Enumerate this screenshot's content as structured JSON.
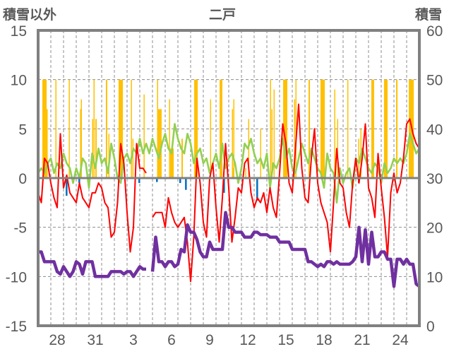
{
  "chart_data": {
    "type": "line",
    "title": "二戸",
    "left_axis_label": "積雪以外",
    "right_axis_label": "積雪",
    "ylim_left": [
      -15,
      15
    ],
    "ylim_right": [
      0,
      60
    ],
    "left_ticks": [
      "15",
      "10",
      "5",
      "0",
      "-5",
      "-10",
      "-15"
    ],
    "left_tick_values": [
      15,
      10,
      5,
      0,
      -5,
      -10,
      -15
    ],
    "right_ticks": [
      "60",
      "50",
      "40",
      "30",
      "20",
      "10",
      "0"
    ],
    "right_tick_values": [
      60,
      50,
      40,
      30,
      20,
      10,
      0
    ],
    "x_range_days": [
      0,
      30
    ],
    "x_ticks": [
      {
        "day": 1.5,
        "label": "28"
      },
      {
        "day": 4.5,
        "label": "31"
      },
      {
        "day": 7.5,
        "label": "3"
      },
      {
        "day": 10.5,
        "label": "6"
      },
      {
        "day": 13.5,
        "label": "9"
      },
      {
        "day": 16.5,
        "label": "12"
      },
      {
        "day": 19.5,
        "label": "15"
      },
      {
        "day": 22.5,
        "label": "18"
      },
      {
        "day": 25.5,
        "label": "21"
      },
      {
        "day": 28.5,
        "label": "24"
      }
    ],
    "grid": {
      "horizontal_dashed": true,
      "vertical_dashed_daily": true
    },
    "series_step_days": 0.25,
    "series": [
      {
        "id": "red-line",
        "axis": "left",
        "color": "#FF0000",
        "values": [
          -1.5,
          -2.5,
          2,
          1.5,
          -0.5,
          -2,
          -3,
          4.5,
          -1,
          0.3,
          -1.5,
          -2,
          -2.5,
          -0.5,
          -2,
          -2.5,
          -3,
          -1.5,
          -1.5,
          -0.5,
          -1,
          -2.5,
          -3,
          -6,
          -5.5,
          -2.5,
          3.5,
          1.5,
          -3.5,
          -7.5,
          -5,
          3.5,
          1,
          1,
          0.5,
          null,
          -4,
          -3.5,
          -3.5,
          -3.5,
          -5,
          -2,
          -3.5,
          -4.5,
          -5,
          -4.5,
          -4,
          -6.5,
          -10.5,
          -6,
          2,
          -0.5,
          -4.5,
          -6,
          0,
          1.5,
          -3,
          -6.5,
          -2,
          3.5,
          -1,
          -6.5,
          -4,
          -1,
          -1.5,
          1.5,
          2,
          -1.5,
          -3,
          -2,
          -2.5,
          -1.5,
          -3.5,
          -1,
          -3,
          -4,
          0.5,
          5.5,
          3.5,
          -0.5,
          -1.5,
          3,
          7.5,
          1,
          -2,
          -2.5,
          2,
          5,
          -0.5,
          -2.5,
          -3.5,
          -4.5,
          -7.5,
          -2.5,
          3,
          -0.5,
          -1,
          -3.5,
          -5,
          -0.5,
          2,
          -0.5,
          2,
          5.5,
          -1,
          -2,
          -4,
          2.5,
          -1,
          -4,
          -8,
          -1.5,
          0.5,
          -1.5,
          -0.5,
          2,
          5.5,
          6,
          4.5,
          3.5,
          3
        ]
      },
      {
        "id": "green-line",
        "axis": "left",
        "color": "#92D050",
        "values": [
          0.5,
          1,
          0.5,
          1.5,
          2,
          0.5,
          1.5,
          1,
          2.5,
          1.5,
          1,
          -0.5,
          1,
          0,
          2,
          1.5,
          -1,
          2.5,
          1,
          3,
          1.5,
          2,
          0.5,
          3.5,
          2,
          0,
          -0.5,
          2,
          2.5,
          1.5,
          3,
          2.5,
          4,
          2.5,
          3.5,
          2.5,
          4,
          3,
          2,
          3.5,
          4.5,
          3,
          2.5,
          5.5,
          4,
          3,
          2.5,
          4.5,
          3.5,
          1.5,
          2.5,
          3,
          1.5,
          2,
          0.5,
          1.5,
          2.5,
          1,
          3.5,
          1,
          2,
          2.5,
          1.5,
          -0.5,
          1,
          3.5,
          3,
          4,
          2.5,
          1.5,
          2,
          1,
          2.5,
          -1,
          1.5,
          1,
          2,
          4,
          2,
          3,
          1,
          0.5,
          2,
          3.5,
          2.5,
          1.5,
          3,
          2,
          1,
          0.5,
          -1,
          2.5,
          1,
          0.5,
          -2.5,
          1,
          -0.5,
          0.5,
          1,
          -1,
          2,
          1.5,
          3,
          2,
          1,
          0.5,
          1.5,
          1,
          -0.5,
          1.5,
          0.5,
          1,
          2,
          1.5,
          2,
          1.5,
          2.5,
          4.5,
          3.5,
          2.5,
          3
        ]
      },
      {
        "id": "purple-line",
        "axis": "right",
        "color": "#7030A0",
        "values": [
          15,
          15,
          13,
          13,
          13,
          13,
          11,
          10.5,
          12,
          11,
          10,
          11,
          13,
          12.5,
          10.5,
          13,
          13,
          13,
          10,
          10,
          10,
          10,
          10,
          11,
          11,
          11,
          11,
          10.5,
          11,
          11,
          10,
          11,
          12,
          11.5,
          11.5,
          null,
          11,
          18,
          13,
          13,
          12,
          13,
          13,
          12,
          12.5,
          15.5,
          15,
          20.5,
          19,
          19,
          17.5,
          15,
          14,
          14,
          17,
          15.5,
          15.5,
          15.5,
          15.5,
          23,
          20,
          20,
          19,
          19,
          19,
          18,
          18,
          18,
          19,
          19,
          18.5,
          18.5,
          18.5,
          18,
          18,
          18,
          17,
          17,
          17,
          17,
          15.5,
          15.5,
          15.5,
          15.5,
          15.5,
          13,
          13,
          12.5,
          12,
          12.5,
          12,
          13,
          13,
          12.5,
          13,
          12.5,
          12.5,
          12.5,
          12.5,
          13,
          14,
          20,
          13,
          19.5,
          12.5,
          19,
          14,
          14,
          15,
          15,
          13.5,
          13.5,
          8,
          13.5,
          13.5,
          12.5,
          13.5,
          12.5,
          12.5,
          8.5,
          8
        ]
      }
    ],
    "orange_bars": {
      "axis": "left",
      "color": "#FFC000",
      "bars": [
        [
          0.33,
          0.67,
          10
        ],
        [
          0.67,
          0.72,
          7
        ],
        [
          1.36,
          1.42,
          10
        ],
        [
          2.41,
          2.47,
          10
        ],
        [
          3.3,
          3.36,
          7
        ],
        [
          3.36,
          3.42,
          8
        ],
        [
          4.25,
          4.31,
          6
        ],
        [
          4.36,
          4.42,
          10
        ],
        [
          4.5,
          4.61,
          6
        ],
        [
          5.33,
          5.44,
          10
        ],
        [
          5.53,
          5.58,
          4.5
        ],
        [
          6.33,
          6.67,
          10
        ],
        [
          7.3,
          7.36,
          10
        ],
        [
          7.42,
          7.47,
          4
        ],
        [
          8.3,
          8.36,
          8.5
        ],
        [
          9.36,
          9.42,
          10
        ],
        [
          9.44,
          9.72,
          7
        ],
        [
          10.3,
          10.36,
          8
        ],
        [
          10.39,
          10.67,
          3
        ],
        [
          11.28,
          11.39,
          4
        ],
        [
          12.28,
          12.56,
          10
        ],
        [
          13.53,
          13.58,
          8
        ],
        [
          14.28,
          14.5,
          10
        ],
        [
          15.25,
          15.31,
          7
        ],
        [
          15.31,
          15.42,
          1
        ],
        [
          15.36,
          15.42,
          8
        ],
        [
          16.3,
          16.36,
          1
        ],
        [
          16.53,
          16.58,
          6
        ],
        [
          17.47,
          17.53,
          5
        ],
        [
          18.25,
          18.31,
          10
        ],
        [
          18.36,
          18.42,
          7
        ],
        [
          18.53,
          18.58,
          9
        ],
        [
          19.28,
          19.61,
          10
        ],
        [
          20.14,
          20.2,
          8
        ],
        [
          20.25,
          20.31,
          10
        ],
        [
          21.28,
          21.39,
          10
        ],
        [
          22.22,
          22.56,
          10
        ],
        [
          23.3,
          23.36,
          9
        ],
        [
          23.53,
          23.58,
          6
        ],
        [
          24.33,
          24.39,
          10
        ],
        [
          25.19,
          25.25,
          4
        ],
        [
          25.36,
          25.42,
          5
        ],
        [
          26.22,
          26.44,
          10
        ],
        [
          27.22,
          27.5,
          10
        ],
        [
          28.17,
          28.28,
          10
        ],
        [
          29.17,
          29.56,
          10
        ]
      ]
    },
    "blue_bars": {
      "axis": "left",
      "color": "#0070C0",
      "bars": [
        [
          2.17,
          -1.8
        ],
        [
          3.17,
          -0.5
        ],
        [
          7.89,
          -0.5
        ],
        [
          9.28,
          -0.4
        ],
        [
          11.11,
          -0.5
        ],
        [
          11.56,
          -1.2
        ],
        [
          14.56,
          -1.5
        ],
        [
          17.17,
          -2.3
        ],
        [
          25.17,
          -0.5
        ]
      ]
    }
  }
}
